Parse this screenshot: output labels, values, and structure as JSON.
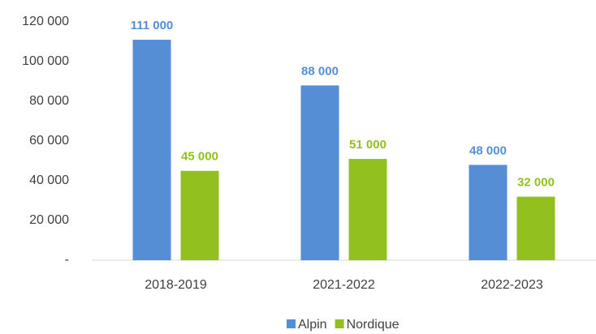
{
  "chart_data": {
    "type": "bar",
    "categories": [
      "2018-2019",
      "2021-2022",
      "2022-2023"
    ],
    "series": [
      {
        "name": "Alpin",
        "color": "#558ed5",
        "values": [
          111000,
          88000,
          48000
        ],
        "value_labels": [
          "111 000",
          "88 000",
          "48 000"
        ]
      },
      {
        "name": "Nordique",
        "color": "#92c01f",
        "values": [
          45000,
          51000,
          32000
        ],
        "value_labels": [
          "45 000",
          "51 000",
          "32 000"
        ]
      }
    ],
    "ylim": [
      0,
      120000
    ],
    "yticks": [
      {
        "value": 0,
        "label": "-"
      },
      {
        "value": 20000,
        "label": "20 000"
      },
      {
        "value": 40000,
        "label": "40 000"
      },
      {
        "value": 60000,
        "label": "60 000"
      },
      {
        "value": 80000,
        "label": "80 000"
      },
      {
        "value": 100000,
        "label": "100 000"
      },
      {
        "value": 120000,
        "label": "120 000"
      }
    ],
    "grid": false,
    "legend": "bottom"
  }
}
